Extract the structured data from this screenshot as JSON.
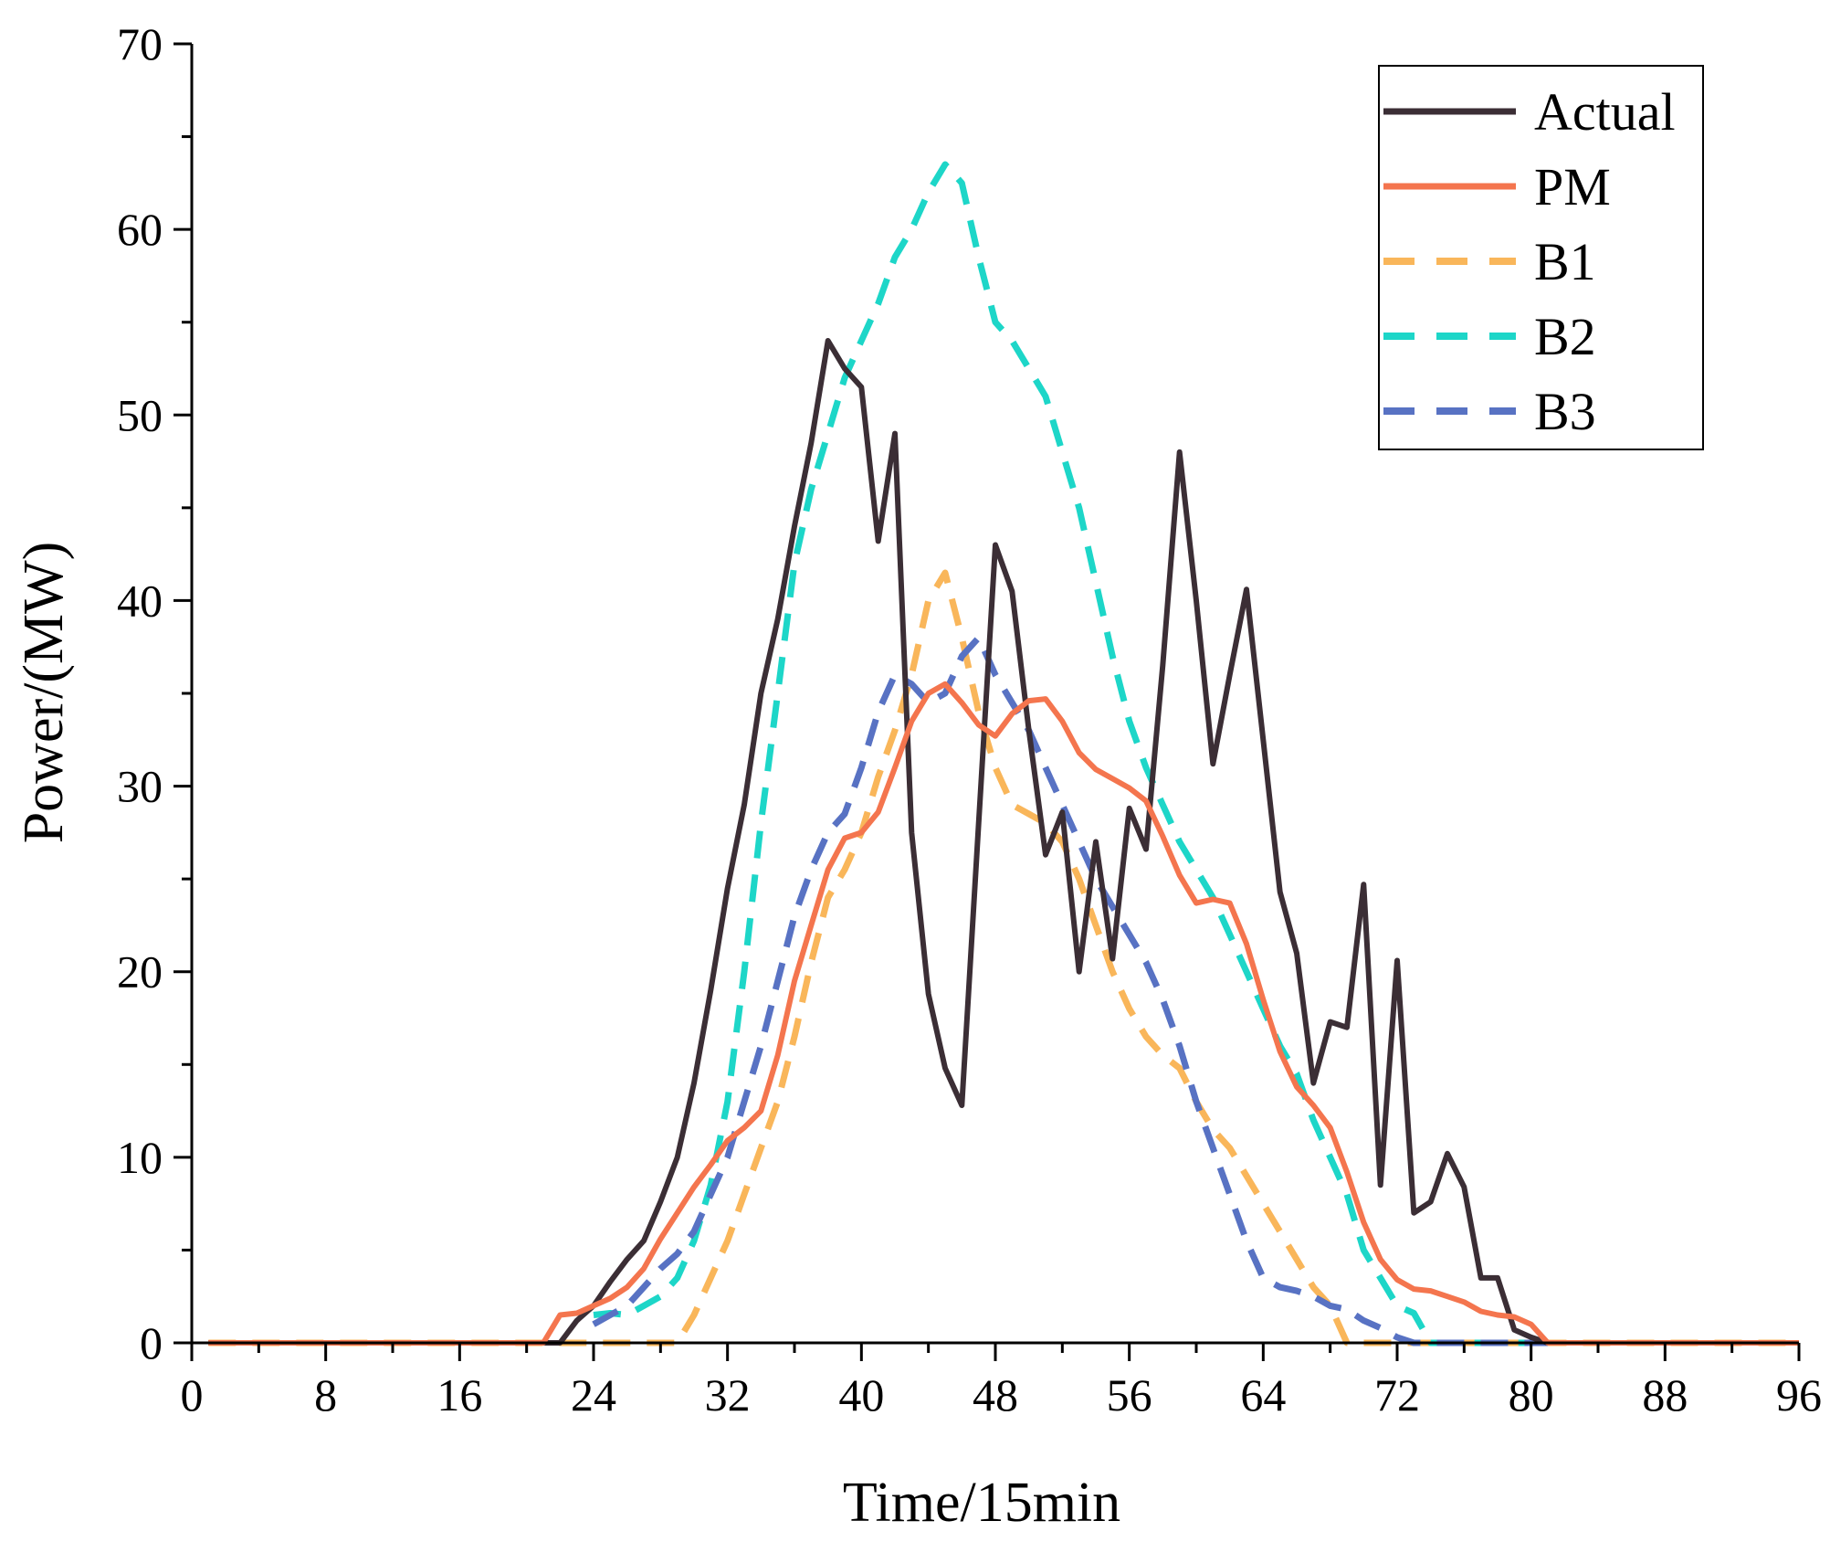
{
  "chart_data": {
    "type": "line",
    "xlabel": "Time/15min",
    "ylabel": "Power/(MW)",
    "xlim": [
      0,
      96
    ],
    "ylim": [
      0,
      70
    ],
    "xticks": [
      0,
      8,
      16,
      24,
      32,
      40,
      48,
      56,
      64,
      72,
      80,
      88,
      96
    ],
    "yticks": [
      0,
      10,
      20,
      30,
      40,
      50,
      60,
      70
    ],
    "legend_position": "top-right",
    "series": [
      {
        "name": "Actual",
        "color": "#3b2e35",
        "dash": "solid",
        "x": [
          1,
          2,
          3,
          4,
          5,
          6,
          7,
          8,
          9,
          10,
          11,
          12,
          13,
          14,
          15,
          16,
          17,
          18,
          19,
          20,
          21,
          22,
          23,
          24,
          25,
          26,
          27,
          28,
          29,
          30,
          31,
          32,
          33,
          34,
          35,
          36,
          37,
          38,
          39,
          40,
          41,
          42,
          43,
          44,
          45,
          46,
          47,
          48,
          49,
          50,
          51,
          52,
          53,
          54,
          55,
          56,
          57,
          58,
          59,
          60,
          61,
          62,
          63,
          64,
          65,
          66,
          67,
          68,
          69,
          70,
          71,
          72,
          73,
          74,
          75,
          76,
          77,
          78,
          79,
          80,
          81,
          82,
          83,
          84,
          85,
          86,
          87,
          88,
          89,
          90,
          91,
          92,
          93,
          94,
          95,
          96
        ],
        "y": [
          0,
          0,
          0,
          0,
          0,
          0,
          0,
          0,
          0,
          0,
          0,
          0,
          0,
          0,
          0,
          0,
          0,
          0,
          0,
          0,
          0,
          0,
          1.2,
          2,
          3.3,
          4.5,
          5.5,
          7.6,
          10,
          14,
          19,
          24.5,
          29,
          35,
          39,
          44,
          48.5,
          54,
          52.5,
          51.5,
          43.2,
          49,
          27.5,
          18.8,
          14.8,
          12.8,
          28,
          43,
          40.5,
          33,
          26.3,
          28.6,
          20,
          27,
          20.7,
          28.8,
          26.6,
          36.5,
          48,
          40,
          31.2,
          36,
          40.6,
          32.5,
          24.3,
          21,
          14,
          17.3,
          17,
          24.7,
          8.5,
          20.6,
          7,
          7.6,
          10.2,
          8.4,
          3.5,
          3.5,
          0.7,
          0.3,
          0,
          0,
          0,
          0,
          0,
          0,
          0,
          0,
          0,
          0,
          0,
          0,
          0,
          0,
          0,
          0
        ]
      },
      {
        "name": "PM",
        "color": "#f4754e",
        "dash": "solid",
        "x": [
          1,
          2,
          3,
          4,
          5,
          6,
          7,
          8,
          9,
          10,
          11,
          12,
          13,
          14,
          15,
          16,
          17,
          18,
          19,
          20,
          21,
          22,
          23,
          24,
          25,
          26,
          27,
          28,
          29,
          30,
          31,
          32,
          33,
          34,
          35,
          36,
          37,
          38,
          39,
          40,
          41,
          42,
          43,
          44,
          45,
          46,
          47,
          48,
          49,
          50,
          51,
          52,
          53,
          54,
          55,
          56,
          57,
          58,
          59,
          60,
          61,
          62,
          63,
          64,
          65,
          66,
          67,
          68,
          69,
          70,
          71,
          72,
          73,
          74,
          75,
          76,
          77,
          78,
          79,
          80,
          81,
          82,
          83,
          84,
          85,
          86,
          87,
          88,
          89,
          90,
          91,
          92,
          93,
          94,
          95,
          96
        ],
        "y": [
          0,
          0,
          0,
          0,
          0,
          0,
          0,
          0,
          0,
          0,
          0,
          0,
          0,
          0,
          0,
          0,
          0,
          0,
          0,
          0,
          0,
          1.5,
          1.6,
          2,
          2.4,
          3,
          4,
          5.6,
          7,
          8.4,
          9.6,
          10.9,
          11.6,
          12.5,
          15.5,
          19.5,
          22.5,
          25.5,
          27.2,
          27.5,
          28.6,
          31,
          33.5,
          35,
          35.5,
          34.5,
          33.3,
          32.7,
          33.9,
          34.6,
          34.7,
          33.5,
          31.8,
          30.9,
          30.4,
          29.9,
          29.2,
          27.3,
          25.2,
          23.7,
          23.9,
          23.7,
          21.5,
          18.5,
          15.7,
          13.8,
          12.8,
          11.6,
          9.2,
          6.5,
          4.5,
          3.4,
          2.9,
          2.8,
          2.5,
          2.2,
          1.7,
          1.5,
          1.4,
          1,
          0,
          0,
          0,
          0,
          0,
          0,
          0,
          0,
          0,
          0,
          0,
          0,
          0,
          0,
          0,
          0
        ]
      },
      {
        "name": "B1",
        "color": "#f9b65a",
        "dash": "dashed",
        "x": [
          1,
          2,
          3,
          4,
          5,
          6,
          7,
          8,
          9,
          10,
          11,
          12,
          13,
          14,
          15,
          16,
          17,
          18,
          19,
          20,
          21,
          22,
          23,
          24,
          25,
          26,
          27,
          28,
          29,
          30,
          31,
          32,
          33,
          34,
          35,
          36,
          37,
          38,
          39,
          40,
          41,
          42,
          43,
          44,
          45,
          46,
          47,
          48,
          49,
          50,
          51,
          52,
          53,
          54,
          55,
          56,
          57,
          58,
          59,
          60,
          61,
          62,
          63,
          64,
          65,
          66,
          67,
          68,
          69,
          70,
          71,
          72,
          73,
          74,
          75,
          76,
          77,
          78,
          79,
          80,
          81,
          82,
          83,
          84,
          85,
          86,
          87,
          88,
          89,
          90,
          91,
          92,
          93,
          94,
          95,
          96
        ],
        "y": [
          0,
          0,
          0,
          0,
          0,
          0,
          0,
          0,
          0,
          0,
          0,
          0,
          0,
          0,
          0,
          0,
          0,
          0,
          0,
          0,
          0,
          0,
          0,
          0,
          0,
          0,
          0,
          0,
          0,
          1.5,
          3.5,
          5.5,
          8,
          10.5,
          13,
          16.5,
          20.5,
          24,
          25.5,
          27.5,
          30.5,
          33,
          36,
          40,
          41.5,
          38,
          34,
          31,
          29,
          28.5,
          28,
          27,
          25,
          22.5,
          20,
          18,
          16.5,
          15.5,
          14.8,
          13,
          11.5,
          10.5,
          9,
          7.5,
          6,
          4.5,
          3,
          2,
          0,
          0,
          0,
          0,
          0,
          0,
          0,
          0,
          0,
          0,
          0,
          0,
          0,
          0,
          0,
          0,
          0,
          0,
          0,
          0,
          0,
          0,
          0,
          0,
          0,
          0,
          0,
          0
        ]
      },
      {
        "name": "B2",
        "color": "#1dd6c8",
        "dash": "dashed",
        "x": [
          24,
          25,
          26,
          27,
          28,
          29,
          30,
          31,
          32,
          33,
          34,
          35,
          36,
          37,
          38,
          39,
          40,
          41,
          42,
          43,
          44,
          45,
          46,
          47,
          48,
          49,
          50,
          51,
          52,
          53,
          54,
          55,
          56,
          57,
          58,
          59,
          60,
          61,
          62,
          63,
          64,
          65,
          66,
          67,
          68,
          69,
          70,
          71,
          72,
          73,
          74,
          75,
          76,
          77,
          78,
          79,
          80,
          81
        ],
        "y": [
          1.5,
          1.6,
          1.5,
          2,
          2.5,
          3.5,
          5.5,
          8.5,
          13,
          20,
          28,
          35,
          42,
          46,
          49,
          52,
          54,
          56,
          58.5,
          60,
          62,
          63.5,
          62.5,
          58.5,
          55,
          54,
          52.5,
          51,
          48,
          45,
          41,
          37,
          33.5,
          31,
          29,
          27,
          25.5,
          24,
          22,
          20,
          18,
          16,
          14.5,
          12,
          10,
          8,
          5,
          3.5,
          2,
          1.6,
          0,
          0,
          0,
          0,
          0,
          0,
          0,
          0
        ]
      },
      {
        "name": "B3",
        "color": "#5872c3",
        "dash": "dashed",
        "x": [
          24,
          25,
          26,
          27,
          28,
          29,
          30,
          31,
          32,
          33,
          34,
          35,
          36,
          37,
          38,
          39,
          40,
          41,
          42,
          43,
          44,
          45,
          46,
          47,
          48,
          49,
          50,
          51,
          52,
          53,
          54,
          55,
          56,
          57,
          58,
          59,
          60,
          61,
          62,
          63,
          64,
          65,
          66,
          67,
          68,
          69,
          70,
          71,
          72,
          73,
          74,
          75,
          76,
          77,
          78,
          79,
          80,
          81
        ],
        "y": [
          1,
          1.5,
          2,
          3,
          4,
          4.8,
          6,
          8,
          10,
          13,
          16,
          19.5,
          23,
          25.5,
          27.5,
          28.5,
          31,
          34,
          36,
          35.5,
          34.5,
          35,
          37,
          38,
          36,
          34.5,
          33,
          31,
          29,
          27,
          25,
          23.5,
          22,
          20.5,
          18.5,
          16,
          13,
          10.5,
          8,
          5.5,
          3.5,
          3,
          2.8,
          2.5,
          2,
          1.8,
          1.2,
          0.8,
          0.3,
          0,
          0,
          0,
          0,
          0,
          0,
          0,
          0,
          0
        ]
      }
    ]
  }
}
